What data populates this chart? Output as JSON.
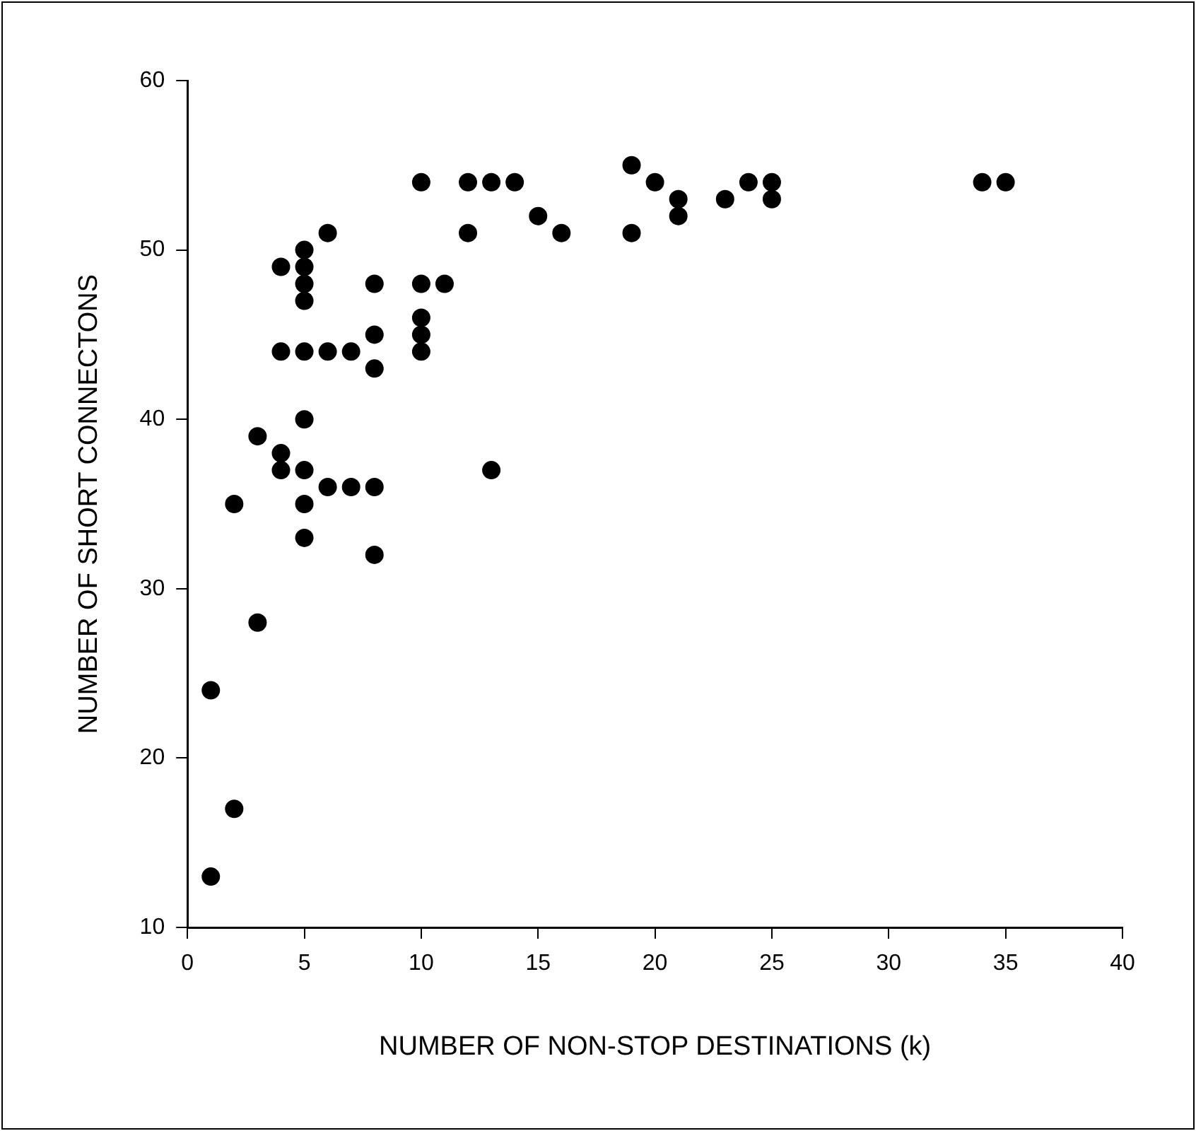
{
  "chart_data": {
    "type": "scatter",
    "xlabel": "NUMBER OF NON-STOP DESTINATIONS (k)",
    "ylabel": "NUMBER OF SHORT CONNECTONS",
    "xlim": [
      0,
      40
    ],
    "xticks": [
      0,
      5,
      10,
      15,
      20,
      25,
      30,
      35,
      40
    ],
    "ylim": [
      10,
      60
    ],
    "yticks": [
      10,
      20,
      30,
      40,
      50,
      60
    ],
    "grid": false,
    "legend": false,
    "marker": "circle",
    "series": [
      {
        "color": "#000000",
        "x": [
          1,
          1,
          2,
          2,
          3,
          3,
          4,
          4,
          4,
          4,
          5,
          5,
          5,
          5,
          5,
          5,
          5,
          5,
          5,
          6,
          6,
          6,
          7,
          7,
          8,
          8,
          8,
          8,
          8,
          10,
          10,
          10,
          10,
          10,
          11,
          12,
          12,
          13,
          13,
          14,
          15,
          16,
          19,
          19,
          20,
          21,
          21,
          23,
          24,
          25,
          25,
          34,
          35
        ],
        "values": [
          24,
          13,
          35,
          17,
          39,
          28,
          49,
          44,
          38,
          37,
          50,
          49,
          48,
          47,
          44,
          40,
          37,
          35,
          33,
          51,
          44,
          36,
          44,
          36,
          48,
          45,
          43,
          36,
          32,
          54,
          48,
          46,
          45,
          44,
          48,
          54,
          51,
          54,
          37,
          54,
          52,
          51,
          55,
          51,
          54,
          53,
          52,
          53,
          54,
          54,
          53,
          54,
          54
        ]
      }
    ]
  }
}
